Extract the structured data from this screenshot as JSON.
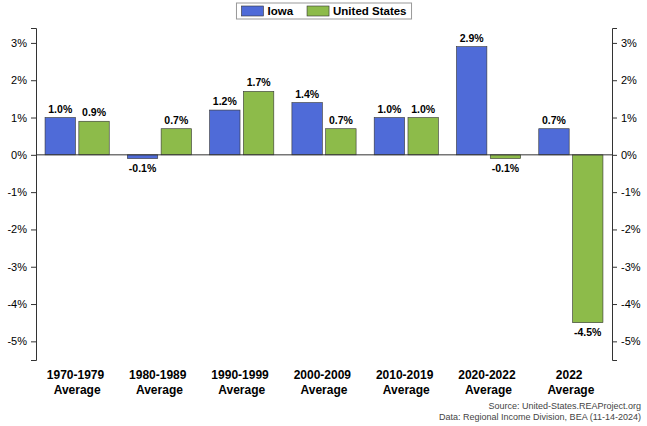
{
  "chart_data": {
    "type": "bar",
    "categories": [
      "1970-1979 Average",
      "1980-1989 Average",
      "1990-1999 Average",
      "2000-2009 Average",
      "2010-2019 Average",
      "2020-2022 Average",
      "2022 Average"
    ],
    "series": [
      {
        "name": "Iowa",
        "color": "#4f6bd8",
        "values": [
          1.0,
          -0.1,
          1.2,
          1.4,
          1.0,
          2.9,
          0.7
        ],
        "value_labels": [
          "1.0%",
          "-0.1%",
          "1.2%",
          "1.4%",
          "1.0%",
          "2.9%",
          "0.7%"
        ]
      },
      {
        "name": "United States",
        "color": "#8dbb4a",
        "values": [
          0.9,
          0.7,
          1.7,
          0.7,
          1.0,
          -0.1,
          -4.5
        ],
        "value_labels": [
          "0.9%",
          "0.7%",
          "1.7%",
          "0.7%",
          "1.0%",
          "-0.1%",
          "-4.5%"
        ]
      }
    ],
    "ylim": [
      -5.5,
      3.4
    ],
    "yticks": [
      {
        "value": -5,
        "label": "-5%"
      },
      {
        "value": -4,
        "label": "-4%"
      },
      {
        "value": -3,
        "label": "-3%"
      },
      {
        "value": -2,
        "label": "-2%"
      },
      {
        "value": -1,
        "label": "-1%"
      },
      {
        "value": 0,
        "label": "0%"
      },
      {
        "value": 1,
        "label": "1%"
      },
      {
        "value": 2,
        "label": "2%"
      },
      {
        "value": 3,
        "label": "3%"
      }
    ],
    "y2lim": [
      -5.5,
      3.4
    ],
    "y2ticks": [
      {
        "value": -5,
        "label": "-5%"
      },
      {
        "value": -4,
        "label": "-4%"
      },
      {
        "value": -3,
        "label": "-3%"
      },
      {
        "value": -2,
        "label": "-2%"
      },
      {
        "value": -1,
        "label": "-1%"
      },
      {
        "value": 0,
        "label": "0%"
      },
      {
        "value": 1,
        "label": "1%"
      },
      {
        "value": 2,
        "label": "2%"
      },
      {
        "value": 3,
        "label": "3%"
      }
    ],
    "annotations": [
      "Source: United-States.REAProject.org",
      "Data: Regional Income Division, BEA (11-14-2024)"
    ],
    "legend": "top",
    "data_labels": true,
    "grid": false
  }
}
